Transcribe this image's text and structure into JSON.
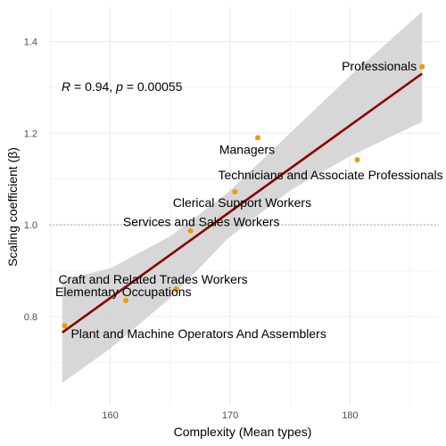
{
  "chart_data": {
    "type": "scatter",
    "xlabel": "Complexity (Mean types)",
    "ylabel": "Scaling coefficient (β)",
    "xlim": [
      154.9,
      187.4
    ],
    "ylim": [
      0.605,
      1.475
    ],
    "x_ticks": [
      160,
      170,
      180
    ],
    "y_ticks": [
      0.8,
      1.0,
      1.2,
      1.4
    ],
    "x_tick_labels": [
      "160",
      "170",
      "180"
    ],
    "y_tick_labels": [
      "0.8",
      "1.0",
      "1.2",
      "1.4"
    ],
    "grid": true,
    "reference_line_y": 1.0,
    "annotation": {
      "r_label": "R",
      "r_value": " = 0.94, ",
      "p_label": "p",
      "p_value": " = 0.00055"
    },
    "points": [
      {
        "label": "Professionals",
        "x": 186.0,
        "y": 1.345
      },
      {
        "label": "Managers",
        "x": 172.3,
        "y": 1.19
      },
      {
        "label": "Technicians and Associate Professionals",
        "x": 180.6,
        "y": 1.142
      },
      {
        "label": "Clerical Support Workers",
        "x": 170.4,
        "y": 1.072
      },
      {
        "label": "Services and Sales Workers",
        "x": 166.7,
        "y": 0.987
      },
      {
        "label": "Craft and Related Trades Workers",
        "x": 165.5,
        "y": 0.86
      },
      {
        "label": "Elementary Occupations",
        "x": 161.3,
        "y": 0.835
      },
      {
        "label": "Plant and Machine Operators And Assemblers",
        "x": 156.2,
        "y": 0.78
      }
    ],
    "regression": {
      "x": [
        156.0,
        186.0
      ],
      "y": [
        0.765,
        1.33
      ],
      "band": [
        {
          "x": 156.0,
          "lo": 0.655,
          "hi": 0.88
        },
        {
          "x": 160.0,
          "lo": 0.73,
          "hi": 0.905
        },
        {
          "x": 165.0,
          "lo": 0.84,
          "hi": 0.975
        },
        {
          "x": 169.8,
          "lo": 0.97,
          "hi": 1.07
        },
        {
          "x": 175.0,
          "lo": 1.075,
          "hi": 1.2
        },
        {
          "x": 180.0,
          "lo": 1.15,
          "hi": 1.325
        },
        {
          "x": 186.0,
          "lo": 1.225,
          "hi": 1.465
        }
      ]
    },
    "colors": {
      "point": "#e69f00",
      "line": "#8b0000",
      "band": "#d3d3d3",
      "grid": "#ebebeb",
      "refline": "#9e9e9e"
    }
  }
}
